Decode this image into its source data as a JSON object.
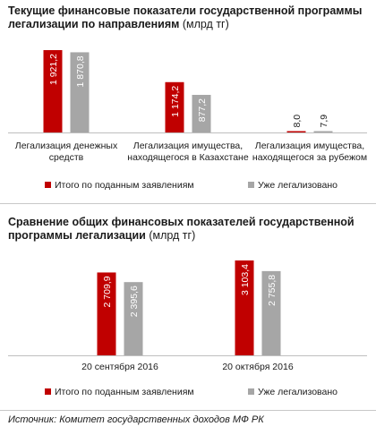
{
  "chart_data": [
    {
      "type": "bar",
      "title": "Текущие финансовые показатели государственной программы легализации по направлениям",
      "unit": "(млрд тг)",
      "categories": [
        [
          "Легализация денежных",
          "средств"
        ],
        [
          "Легализация имущества,",
          "находящегося в Казахстане"
        ],
        [
          "Легализация имущества,",
          "находящегося за рубежом"
        ]
      ],
      "series": [
        {
          "name": "Итого по поданным заявлениям",
          "color": "#c00000",
          "values": [
            1921.2,
            1174.2,
            8.0
          ],
          "labels": [
            "1 921,2",
            "1 174,2",
            "8,0"
          ]
        },
        {
          "name": "Уже легализовано",
          "color": "#a6a6a6",
          "values": [
            1870.8,
            877.2,
            7.9
          ],
          "labels": [
            "1 870,8",
            "877,2",
            "7,9"
          ]
        }
      ],
      "ylim": [
        0,
        1921.2
      ],
      "legend": "bottom",
      "grid": false
    },
    {
      "type": "bar",
      "title": "Сравнение общих финансовых показателей государственной программы легализации",
      "unit": "(млрд тг)",
      "categories": [
        [
          "20 сентября 2016"
        ],
        [
          "20 октября 2016"
        ]
      ],
      "series": [
        {
          "name": "Итого по поданным заявлениям",
          "color": "#c00000",
          "values": [
            2709.9,
            3103.4
          ],
          "labels": [
            "2 709,9",
            "3 103,4"
          ]
        },
        {
          "name": "Уже легализовано",
          "color": "#a6a6a6",
          "values": [
            2395.6,
            2755.8
          ],
          "labels": [
            "2 395,6",
            "2 755,8"
          ]
        }
      ],
      "ylim": [
        0,
        3103.4
      ],
      "legend": "bottom",
      "grid": false
    }
  ],
  "source": "Источник: Комитет государственных доходов МФ РК"
}
